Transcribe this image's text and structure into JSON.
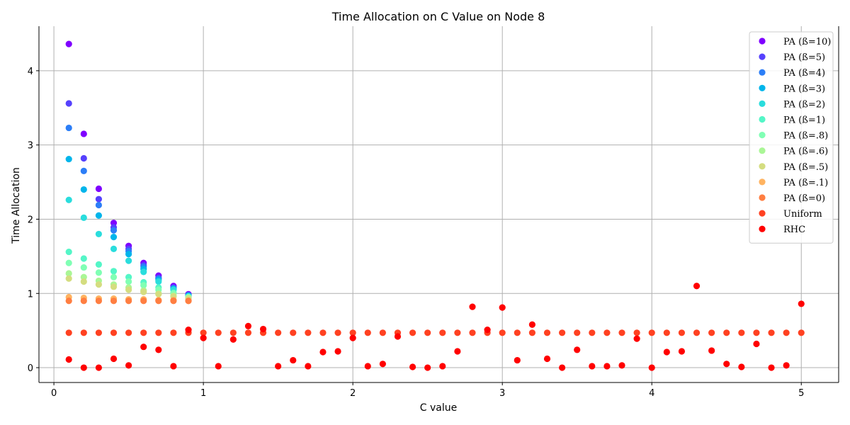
{
  "chart_data": {
    "type": "scatter",
    "title": "Time Allocation on C Value on Node 8",
    "xlabel": "C value",
    "ylabel": "Time Allocation",
    "xlim": [
      -0.1,
      5.25
    ],
    "ylim": [
      -0.2,
      4.6
    ],
    "xticks": [
      0,
      1,
      2,
      3,
      4,
      5
    ],
    "yticks": [
      0,
      1,
      2,
      3,
      4
    ],
    "grid": true,
    "legend_position": "upper-right",
    "series": [
      {
        "name": "PA (ß=10)",
        "color": "#7f00ff",
        "x": [
          0.1,
          0.2,
          0.3,
          0.4,
          0.5,
          0.6,
          0.7,
          0.8,
          0.9
        ],
        "y": [
          4.36,
          3.15,
          2.41,
          1.95,
          1.64,
          1.41,
          1.24,
          1.1,
          0.99
        ]
      },
      {
        "name": "PA (ß=5)",
        "color": "#5641fd",
        "x": [
          0.1,
          0.2,
          0.3,
          0.4,
          0.5,
          0.6,
          0.7,
          0.8,
          0.9
        ],
        "y": [
          3.56,
          2.82,
          2.27,
          1.89,
          1.6,
          1.38,
          1.21,
          1.08,
          0.98
        ]
      },
      {
        "name": "PA (ß=4)",
        "color": "#2c7ef7",
        "x": [
          0.1,
          0.2,
          0.3,
          0.4,
          0.5,
          0.6,
          0.7,
          0.8,
          0.9
        ],
        "y": [
          3.23,
          2.65,
          2.19,
          1.85,
          1.57,
          1.36,
          1.2,
          1.07,
          0.97
        ]
      },
      {
        "name": "PA (ß=3)",
        "color": "#00b5eb",
        "x": [
          0.1,
          0.2,
          0.3,
          0.4,
          0.5,
          0.6,
          0.7,
          0.8,
          0.9
        ],
        "y": [
          2.81,
          2.4,
          2.05,
          1.76,
          1.53,
          1.33,
          1.18,
          1.06,
          0.97
        ]
      },
      {
        "name": "PA (ß=2)",
        "color": "#2adddd",
        "x": [
          0.1,
          0.2,
          0.3,
          0.4,
          0.5,
          0.6,
          0.7,
          0.8,
          0.9
        ],
        "y": [
          2.26,
          2.02,
          1.8,
          1.6,
          1.44,
          1.29,
          1.16,
          1.05,
          0.96
        ]
      },
      {
        "name": "PA (ß=1)",
        "color": "#54f6c7",
        "x": [
          0.1,
          0.2,
          0.3,
          0.4,
          0.5,
          0.6,
          0.7,
          0.8,
          0.9
        ],
        "y": [
          1.56,
          1.47,
          1.39,
          1.3,
          1.22,
          1.15,
          1.08,
          1.01,
          0.95
        ]
      },
      {
        "name": "PA (ß=.8)",
        "color": "#80ffb4",
        "x": [
          0.1,
          0.2,
          0.3,
          0.4,
          0.5,
          0.6,
          0.7,
          0.8,
          0.9
        ],
        "y": [
          1.41,
          1.35,
          1.28,
          1.22,
          1.16,
          1.11,
          1.05,
          1.0,
          0.95
        ]
      },
      {
        "name": "PA (ß=.6)",
        "color": "#aaf696",
        "x": [
          0.1,
          0.2,
          0.3,
          0.4,
          0.5,
          0.6,
          0.7,
          0.8,
          0.9
        ],
        "y": [
          1.27,
          1.22,
          1.17,
          1.12,
          1.08,
          1.04,
          1.0,
          0.97,
          0.94
        ]
      },
      {
        "name": "PA (ß=.5)",
        "color": "#d4dd80",
        "x": [
          0.1,
          0.2,
          0.3,
          0.4,
          0.5,
          0.6,
          0.7,
          0.8,
          0.9
        ],
        "y": [
          1.2,
          1.16,
          1.12,
          1.09,
          1.05,
          1.02,
          0.99,
          0.96,
          0.93
        ]
      },
      {
        "name": "PA (ß=.1)",
        "color": "#ffb360",
        "x": [
          0.1,
          0.2,
          0.3,
          0.4,
          0.5,
          0.6,
          0.7,
          0.8,
          0.9
        ],
        "y": [
          0.95,
          0.94,
          0.93,
          0.93,
          0.92,
          0.92,
          0.91,
          0.91,
          0.9
        ]
      },
      {
        "name": "PA (ß=0)",
        "color": "#ff7e41",
        "x": [
          0.1,
          0.2,
          0.3,
          0.4,
          0.5,
          0.6,
          0.7,
          0.8,
          0.9
        ],
        "y": [
          0.9,
          0.9,
          0.9,
          0.9,
          0.9,
          0.9,
          0.9,
          0.9,
          0.9
        ]
      },
      {
        "name": "Uniform",
        "color": "#ff4121",
        "x": [
          0.1,
          0.2,
          0.3,
          0.4,
          0.5,
          0.6,
          0.7,
          0.8,
          0.9,
          1.0,
          1.1,
          1.2,
          1.3,
          1.4,
          1.5,
          1.6,
          1.7,
          1.8,
          1.9,
          2.0,
          2.1,
          2.2,
          2.3,
          2.4,
          2.5,
          2.6,
          2.7,
          2.8,
          2.9,
          3.0,
          3.1,
          3.2,
          3.3,
          3.4,
          3.5,
          3.6,
          3.7,
          3.8,
          3.9,
          4.0,
          4.1,
          4.2,
          4.3,
          4.4,
          4.5,
          4.6,
          4.7,
          4.8,
          4.9,
          5.0
        ],
        "y": [
          0.47,
          0.47,
          0.47,
          0.47,
          0.47,
          0.47,
          0.47,
          0.47,
          0.47,
          0.47,
          0.47,
          0.47,
          0.47,
          0.47,
          0.47,
          0.47,
          0.47,
          0.47,
          0.47,
          0.47,
          0.47,
          0.47,
          0.47,
          0.47,
          0.47,
          0.47,
          0.47,
          0.47,
          0.47,
          0.47,
          0.47,
          0.47,
          0.47,
          0.47,
          0.47,
          0.47,
          0.47,
          0.47,
          0.47,
          0.47,
          0.47,
          0.47,
          0.47,
          0.47,
          0.47,
          0.47,
          0.47,
          0.47,
          0.47,
          0.47
        ]
      },
      {
        "name": "RHC",
        "color": "#ff0000",
        "x": [
          0.1,
          0.2,
          0.3,
          0.4,
          0.5,
          0.6,
          0.7,
          0.8,
          0.9,
          1.0,
          1.1,
          1.2,
          1.3,
          1.4,
          1.5,
          1.6,
          1.7,
          1.8,
          1.9,
          2.0,
          2.1,
          2.2,
          2.3,
          2.4,
          2.5,
          2.6,
          2.7,
          2.8,
          2.9,
          3.0,
          3.1,
          3.2,
          3.3,
          3.4,
          3.5,
          3.6,
          3.7,
          3.8,
          3.9,
          4.0,
          4.1,
          4.2,
          4.3,
          4.4,
          4.5,
          4.6,
          4.7,
          4.8,
          4.9,
          5.0
        ],
        "y": [
          0.11,
          0.0,
          0.0,
          0.12,
          0.03,
          0.28,
          0.24,
          0.02,
          0.51,
          0.4,
          0.02,
          0.38,
          0.56,
          0.52,
          0.02,
          0.1,
          0.02,
          0.21,
          0.22,
          0.4,
          0.02,
          0.05,
          0.42,
          0.01,
          0.0,
          0.02,
          0.22,
          0.82,
          0.51,
          0.81,
          0.1,
          0.58,
          0.12,
          0.0,
          0.24,
          0.02,
          0.02,
          0.03,
          0.39,
          0.0,
          0.21,
          0.22,
          1.1,
          0.23,
          0.05,
          0.01,
          0.32,
          0.0,
          0.03,
          0.86
        ]
      }
    ]
  }
}
